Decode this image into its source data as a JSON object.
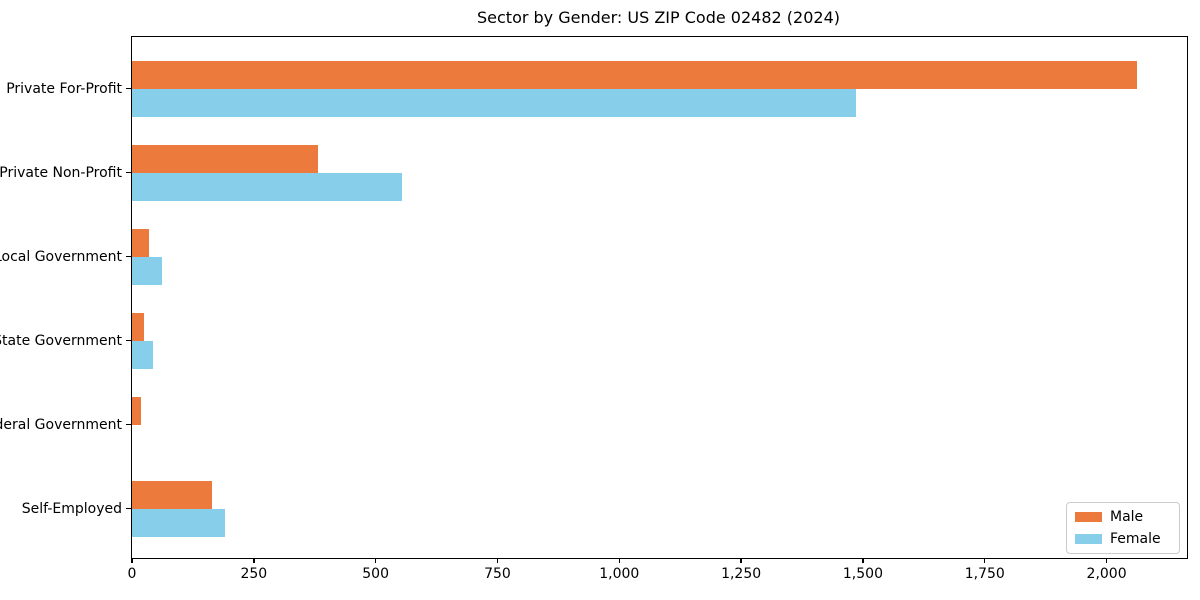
{
  "title": "Sector by Gender: US ZIP Code 02482 (2024)",
  "colors": {
    "male": "#ec7a3c",
    "female": "#87ceeb",
    "spine": "#000000",
    "legend_border": "#cccccc",
    "background": "#ffffff"
  },
  "chart_data": {
    "type": "bar",
    "orientation": "horizontal",
    "title": "Sector by Gender: US ZIP Code 02482 (2024)",
    "xlabel": "",
    "ylabel": "",
    "categories": [
      "Private For-Profit",
      "Private Non-Profit",
      "Local Government",
      "State Government",
      "Federal Government",
      "Self-Employed"
    ],
    "series": [
      {
        "name": "Male",
        "color": "#ec7a3c",
        "values": [
          2062,
          382,
          35,
          25,
          19,
          164
        ]
      },
      {
        "name": "Female",
        "color": "#87ceeb",
        "values": [
          1485,
          554,
          62,
          43,
          0,
          190
        ]
      }
    ],
    "xlim": [
      0,
      2165
    ],
    "xticks": [
      0,
      250,
      500,
      750,
      1000,
      1250,
      1500,
      1750,
      2000
    ],
    "xtick_labels": [
      "0",
      "250",
      "500",
      "750",
      "1,000",
      "1,250",
      "1,500",
      "1,750",
      "2,000"
    ],
    "grid": false,
    "legend": {
      "position": "lower right",
      "entries": [
        "Male",
        "Female"
      ]
    }
  }
}
